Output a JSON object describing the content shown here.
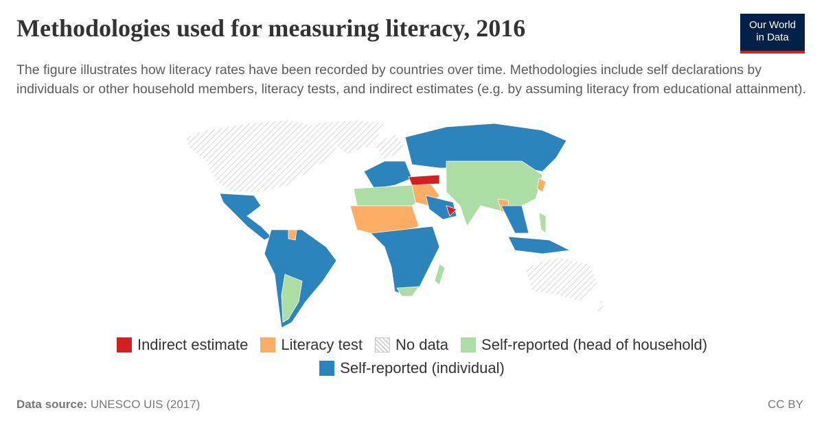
{
  "header": {
    "title": "Methodologies used for measuring literacy, 2016",
    "subtitle": "The figure illustrates how literacy rates have been recorded by countries over time. Methodologies include self declarations by individuals or other household members, literacy tests, and indirect estimates (e.g. by assuming literacy from educational attainment).",
    "logo": [
      "Our World",
      "in Data"
    ]
  },
  "legend": [
    {
      "label": "Indirect estimate",
      "color": "#d62020"
    },
    {
      "label": "Literacy test",
      "color": "#fcac63"
    },
    {
      "label": "No data",
      "color": "#c8c8c8"
    },
    {
      "label": "Self-reported (head of household)",
      "color": "#abdda4"
    },
    {
      "label": "Self-reported (individual)",
      "color": "#2c84bd"
    }
  ],
  "footer": {
    "source_label": "Data source:",
    "source": "UNESCO UIS (2017)",
    "license": "CC BY"
  }
}
